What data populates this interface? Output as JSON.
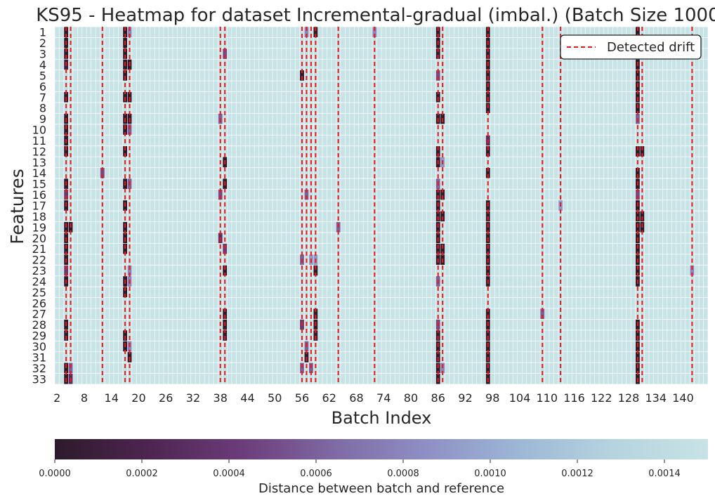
{
  "chart_data": {
    "type": "heatmap",
    "title": "KS95 - Heatmap for dataset Incremental-gradual (imbal.) (Batch Size 1000)",
    "xlabel": "Batch Index",
    "ylabel": "Features",
    "x_start": 2,
    "x_end": 145,
    "x_tick_labels": [
      "2",
      "8",
      "14",
      "20",
      "26",
      "32",
      "38",
      "44",
      "50",
      "56",
      "62",
      "68",
      "74",
      "80",
      "86",
      "92",
      "98",
      "104",
      "110",
      "116",
      "122",
      "128",
      "134",
      "140"
    ],
    "y_tick_labels": [
      "1",
      "2",
      "3",
      "4",
      "5",
      "6",
      "7",
      "8",
      "9",
      "10",
      "11",
      "12",
      "13",
      "14",
      "15",
      "16",
      "17",
      "18",
      "19",
      "20",
      "21",
      "22",
      "23",
      "24",
      "25",
      "26",
      "27",
      "28",
      "29",
      "30",
      "31",
      "32",
      "33"
    ],
    "default_value": 0.0015,
    "vmin": 0.0,
    "vmax": 0.0015,
    "drift_batches": [
      4,
      5,
      12,
      17,
      18,
      38,
      39,
      56,
      57,
      58,
      59,
      64,
      72,
      86,
      87,
      97,
      109,
      113,
      130,
      131,
      142
    ],
    "cells": [
      {
        "batch": 4,
        "features": [
          1,
          2,
          3,
          4,
          7,
          9,
          10,
          11,
          12,
          15,
          16,
          17,
          19,
          20,
          21,
          22,
          23,
          24,
          28,
          29,
          32,
          33
        ],
        "values": [
          0.0,
          0.0,
          0.0,
          0.0001,
          0.0,
          0.0,
          0.0,
          0.0,
          0.0,
          0.0,
          0.0004,
          0.0,
          0.0,
          0.0,
          0.0,
          0.0,
          0.0004,
          0.0,
          0.0,
          0.0,
          0.0,
          0.0
        ]
      },
      {
        "batch": 5,
        "features": [
          19,
          32,
          33
        ],
        "values": [
          0.0,
          0.0006,
          0.0003
        ]
      },
      {
        "batch": 12,
        "features": [
          14
        ],
        "values": [
          0.0005
        ]
      },
      {
        "batch": 17,
        "features": [
          1,
          2,
          3,
          4,
          5,
          7,
          9,
          10,
          12,
          15,
          17,
          19,
          20,
          21,
          24,
          25,
          29,
          30
        ],
        "values": [
          0.0,
          0.0,
          0.0,
          0.0,
          0.0,
          0.0,
          0.0,
          0.0,
          0.0,
          0.0,
          0.0,
          0.0,
          0.0,
          0.0,
          0.0,
          0.0,
          0.0,
          0.0
        ]
      },
      {
        "batch": 18,
        "features": [
          1,
          4,
          7,
          9,
          10,
          15,
          23,
          24,
          30,
          31
        ],
        "values": [
          0.0008,
          0.0,
          0.0,
          0.0,
          0.0006,
          0.0006,
          0.0008,
          0.0008,
          0.0008,
          0.0
        ]
      },
      {
        "batch": 38,
        "features": [
          9,
          16,
          20
        ],
        "values": [
          0.0006,
          0.0005,
          0.0003
        ]
      },
      {
        "batch": 39,
        "features": [
          3,
          13,
          15,
          21,
          23,
          27,
          28,
          29
        ],
        "values": [
          0.0005,
          0.0,
          0.0,
          0.0004,
          0.0,
          0.0,
          0.0,
          0.0
        ]
      },
      {
        "batch": 56,
        "features": [
          5,
          22,
          28,
          32
        ],
        "values": [
          0.0,
          0.0006,
          0.0004,
          0.0006
        ]
      },
      {
        "batch": 57,
        "features": [
          1,
          16,
          30,
          31
        ],
        "values": [
          0.0008,
          0.0006,
          0.0006,
          0.0
        ]
      },
      {
        "batch": 58,
        "features": [
          22,
          32
        ],
        "values": [
          0.0009,
          0.0006
        ]
      },
      {
        "batch": 59,
        "features": [
          1,
          22,
          23,
          27,
          28,
          29
        ],
        "values": [
          0.0,
          0.0009,
          0.0,
          0.0,
          0.0,
          0.0
        ]
      },
      {
        "batch": 64,
        "features": [
          19
        ],
        "values": [
          0.0006
        ]
      },
      {
        "batch": 72,
        "features": [
          1
        ],
        "values": [
          0.0008
        ]
      },
      {
        "batch": 86,
        "features": [
          1,
          2,
          3,
          5,
          7,
          9,
          12,
          13,
          15,
          16,
          17,
          18,
          19,
          20,
          21,
          22,
          24,
          28,
          29,
          30,
          31,
          32,
          33
        ],
        "values": [
          0.0,
          0.0,
          0.0,
          0.0005,
          0.0,
          0.0,
          0.0,
          0.0,
          0.0006,
          0.0,
          0.0,
          0.0,
          0.0,
          0.0,
          0.0,
          0.0,
          0.0006,
          0.0005,
          0.0,
          0.0,
          0.0,
          0.0,
          0.0
        ]
      },
      {
        "batch": 87,
        "features": [
          9,
          13,
          16,
          18,
          21,
          22,
          32
        ],
        "values": [
          0.0,
          0.0009,
          0.0,
          0.0,
          0.0,
          0.0,
          0.0008
        ]
      },
      {
        "batch": 97,
        "features": [
          1,
          2,
          3,
          4,
          5,
          6,
          7,
          8,
          11,
          12,
          14,
          17,
          18,
          19,
          20,
          21,
          22,
          23,
          24,
          27,
          28,
          29,
          30,
          31,
          32,
          33
        ],
        "values": [
          0.0,
          0.0,
          0.0,
          0.0,
          0.0,
          0.0,
          0.0,
          0.0,
          0.0003,
          0.0,
          0.0,
          0.0,
          0.0,
          0.0,
          0.0,
          0.0,
          0.0,
          0.0,
          0.0,
          0.0,
          0.0,
          0.0,
          0.0,
          0.0,
          0.0,
          0.0
        ]
      },
      {
        "batch": 109,
        "features": [
          27
        ],
        "values": [
          0.0006
        ]
      },
      {
        "batch": 113,
        "features": [
          17
        ],
        "values": [
          0.0009
        ]
      },
      {
        "batch": 130,
        "features": [
          1,
          2,
          3,
          4,
          5,
          6,
          7,
          8,
          9,
          12,
          14,
          15,
          16,
          17,
          18,
          19,
          20,
          21,
          22,
          23,
          24,
          28,
          29,
          30,
          31,
          32,
          33
        ],
        "values": [
          0.0,
          0.0,
          0.0,
          0.0,
          0.0,
          0.0,
          0.0,
          0.0,
          0.0006,
          0.0,
          0.0,
          0.0,
          0.0005,
          0.0,
          0.0,
          0.0,
          0.0,
          0.0,
          0.0,
          0.0,
          0.0,
          0.0,
          0.0,
          0.0,
          0.0,
          0.0,
          0.0
        ]
      },
      {
        "batch": 131,
        "features": [
          12,
          18,
          19
        ],
        "values": [
          0.0,
          0.0,
          0.0
        ]
      },
      {
        "batch": 142,
        "features": [
          23
        ],
        "values": [
          0.0008
        ]
      }
    ],
    "legend": {
      "label": "Detected drift",
      "placement": "top-right"
    },
    "colorbar": {
      "label": "Distance between batch and reference",
      "tick_values": [
        0.0,
        0.0002,
        0.0004,
        0.0006,
        0.0008,
        0.001,
        0.0012,
        0.0014
      ],
      "tick_labels": [
        "0.0000",
        "0.0002",
        "0.0004",
        "0.0006",
        "0.0008",
        "0.0010",
        "0.0012",
        "0.0014"
      ],
      "stops": [
        "#2d1a2b",
        "#4d2550",
        "#6c3c7a",
        "#7f6aa5",
        "#8e90c5",
        "#9db8d6",
        "#b6d4de",
        "#c7e3e6"
      ]
    },
    "colors": {
      "drift_line": "#e8191a",
      "grid": "#ffffff",
      "text": "#262626"
    }
  }
}
